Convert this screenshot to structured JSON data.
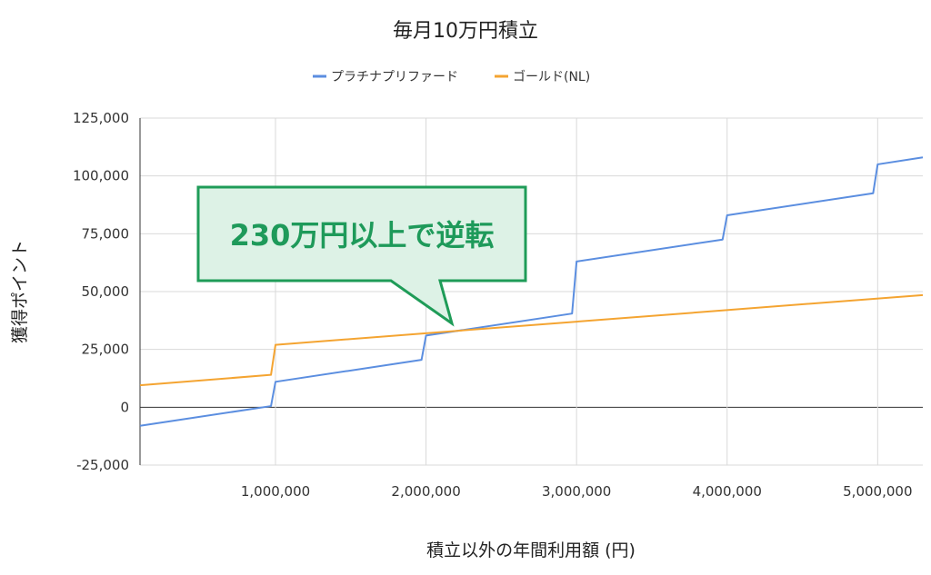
{
  "chart_data": {
    "type": "line",
    "title": "毎月10万円積立",
    "xlabel": "積立以外の年間利用額 (円)",
    "ylabel": "獲得ポイント",
    "xlim": [
      100000,
      5300000
    ],
    "ylim": [
      -25000,
      125000
    ],
    "x_ticks": [
      1000000,
      2000000,
      3000000,
      4000000,
      5000000
    ],
    "x_tick_labels": [
      "1,000,000",
      "2,000,000",
      "3,000,000",
      "4,000,000",
      "5,000,000"
    ],
    "y_ticks": [
      -25000,
      0,
      25000,
      50000,
      75000,
      100000,
      125000
    ],
    "y_tick_labels": [
      "-25,000",
      "0",
      "25,000",
      "50,000",
      "75,000",
      "100,000",
      "125,000"
    ],
    "grid": true,
    "legend_position": "top-center",
    "annotation": "230万円以上で逆転",
    "series": [
      {
        "name": "プラチナプリファード",
        "color": "#5b8ee0",
        "points": [
          [
            100000,
            -8000
          ],
          [
            970000,
            500
          ],
          [
            1000000,
            11000
          ],
          [
            1970000,
            20500
          ],
          [
            2000000,
            31000
          ],
          [
            2970000,
            40500
          ],
          [
            3000000,
            63000
          ],
          [
            3970000,
            72500
          ],
          [
            4000000,
            83000
          ],
          [
            4970000,
            92500
          ],
          [
            5000000,
            105000
          ],
          [
            5300000,
            108000
          ]
        ]
      },
      {
        "name": "ゴールド(NL)",
        "color": "#f4a431",
        "points": [
          [
            100000,
            9500
          ],
          [
            970000,
            14000
          ],
          [
            1000000,
            27000
          ],
          [
            5300000,
            48500
          ]
        ]
      }
    ]
  }
}
